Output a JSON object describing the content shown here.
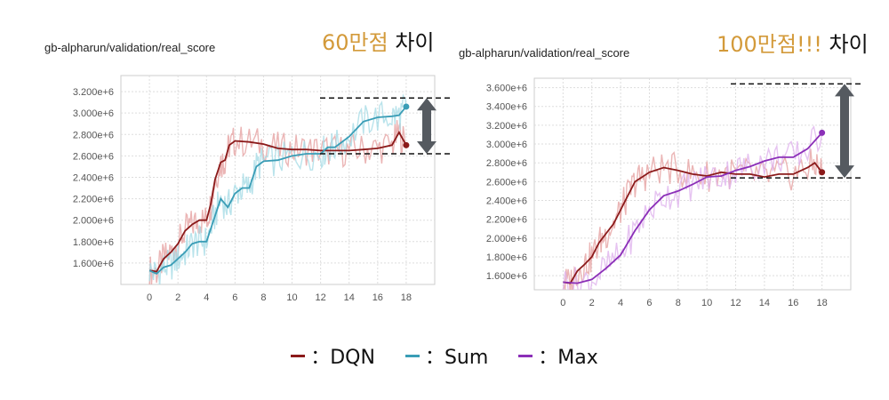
{
  "chart_data": [
    {
      "type": "line",
      "title": "gb-alpharun/validation/real_score",
      "headline_number": "60만점",
      "headline_word": "차이",
      "xlim": [
        -2,
        20
      ],
      "ylim": [
        1400000,
        3350000
      ],
      "xticks": [
        0,
        2,
        4,
        6,
        8,
        10,
        12,
        14,
        16,
        18
      ],
      "yticks": [
        1600000,
        1800000,
        2000000,
        2200000,
        2400000,
        2600000,
        2800000,
        3000000,
        3200000
      ],
      "ytick_labels": [
        "1.600e+6",
        "1.800e+6",
        "2.000e+6",
        "2.200e+6",
        "2.400e+6",
        "2.600e+6",
        "2.800e+6",
        "3.000e+6",
        "3.200e+6"
      ],
      "grid": true,
      "annotation": {
        "upper_y": 3140000,
        "lower_y": 2620000
      },
      "series": [
        {
          "key": "dqn",
          "color": "#8b1a1a",
          "raw_color": "#e6a3a3",
          "x": [
            0,
            0.5,
            1,
            1.5,
            2,
            2.5,
            3,
            3.5,
            4,
            4.3,
            4.6,
            5,
            5.3,
            5.6,
            6,
            7,
            8,
            9,
            10,
            11,
            12,
            13,
            14,
            15,
            16,
            17,
            17.5,
            18
          ],
          "y": [
            1530000,
            1520000,
            1640000,
            1700000,
            1780000,
            1900000,
            1960000,
            2000000,
            2000000,
            2150000,
            2380000,
            2540000,
            2560000,
            2700000,
            2740000,
            2730000,
            2710000,
            2670000,
            2660000,
            2660000,
            2650000,
            2650000,
            2650000,
            2660000,
            2670000,
            2700000,
            2820000,
            2700000
          ]
        },
        {
          "key": "sum",
          "color": "#3a9db6",
          "raw_color": "#a8dce6",
          "x": [
            0,
            0.5,
            1,
            1.5,
            2,
            2.5,
            3,
            3.5,
            4,
            4.5,
            5,
            5.5,
            6,
            6.5,
            7,
            7.5,
            8,
            9,
            10,
            11,
            12,
            12.5,
            13,
            14,
            15,
            16,
            17,
            17.5,
            18
          ],
          "y": [
            1530000,
            1500000,
            1560000,
            1580000,
            1640000,
            1700000,
            1780000,
            1800000,
            1800000,
            2000000,
            2200000,
            2120000,
            2250000,
            2300000,
            2300000,
            2500000,
            2550000,
            2560000,
            2600000,
            2620000,
            2620000,
            2680000,
            2680000,
            2780000,
            2920000,
            2960000,
            2970000,
            2980000,
            3060000
          ]
        }
      ]
    },
    {
      "type": "line",
      "title": "gb-alpharun/validation/real_score",
      "headline_number": "100만점!!!",
      "headline_word": "차이",
      "xlim": [
        -2,
        20
      ],
      "ylim": [
        1450000,
        3700000
      ],
      "xticks": [
        0,
        2,
        4,
        6,
        8,
        10,
        12,
        14,
        16,
        18
      ],
      "yticks": [
        1600000,
        1800000,
        2000000,
        2200000,
        2400000,
        2600000,
        2800000,
        3000000,
        3200000,
        3400000,
        3600000
      ],
      "ytick_labels": [
        "1.600e+6",
        "1.800e+6",
        "2.000e+6",
        "2.200e+6",
        "2.400e+6",
        "2.600e+6",
        "2.800e+6",
        "3.000e+6",
        "3.200e+6",
        "3.400e+6",
        "3.600e+6"
      ],
      "grid": true,
      "annotation": {
        "upper_y": 3640000,
        "lower_y": 2640000
      },
      "series": [
        {
          "key": "dqn",
          "color": "#8b1a1a",
          "raw_color": "#e6a3a3",
          "x": [
            0,
            0.5,
            1,
            1.5,
            2,
            2.5,
            3,
            3.5,
            4,
            4.5,
            5,
            5.5,
            6,
            7,
            8,
            9,
            10,
            11,
            12,
            13,
            14,
            15,
            16,
            17,
            17.5,
            18
          ],
          "y": [
            1530000,
            1520000,
            1650000,
            1720000,
            1800000,
            1950000,
            2050000,
            2150000,
            2300000,
            2450000,
            2600000,
            2650000,
            2700000,
            2750000,
            2720000,
            2680000,
            2660000,
            2700000,
            2680000,
            2680000,
            2650000,
            2680000,
            2680000,
            2750000,
            2800000,
            2700000
          ]
        },
        {
          "key": "max",
          "color": "#8b2fb8",
          "raw_color": "#e0b4ee",
          "x": [
            0,
            1,
            2,
            3,
            4,
            5,
            6,
            7,
            8,
            9,
            10,
            11,
            12,
            13,
            14,
            15,
            16,
            17,
            18
          ],
          "y": [
            1530000,
            1520000,
            1560000,
            1680000,
            1820000,
            2080000,
            2300000,
            2450000,
            2500000,
            2570000,
            2650000,
            2660000,
            2720000,
            2760000,
            2820000,
            2860000,
            2860000,
            2950000,
            3120000
          ]
        }
      ]
    }
  ],
  "legend": [
    {
      "key": "dqn",
      "label": "：DQN",
      "color": "#8b1a1a"
    },
    {
      "key": "sum",
      "label": "：Sum",
      "color": "#3a9db6"
    },
    {
      "key": "max",
      "label": "：Max",
      "color": "#8b2fb8"
    }
  ]
}
